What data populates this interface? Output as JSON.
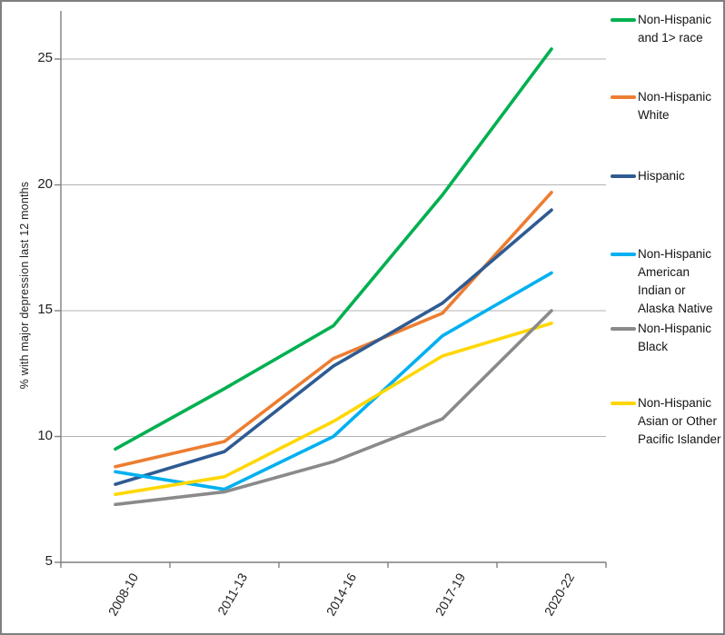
{
  "chart_data": {
    "type": "line",
    "title": "",
    "xlabel": "",
    "ylabel": "% with major depression last 12 months",
    "categories": [
      "2008-10",
      "2011-13",
      "2014-16",
      "2017-19",
      "2020-22"
    ],
    "y_ticks": [
      5,
      10,
      15,
      20,
      25
    ],
    "ylim": [
      5,
      27
    ],
    "grid": "horizontal",
    "legend_position": "right",
    "draw_order": [
      0,
      1,
      2,
      3,
      5,
      4
    ],
    "series": [
      {
        "name": "Non-Hispanic and 1> race",
        "lines": [
          "Non-Hispanic",
          "and 1> race"
        ],
        "color": "#00B050",
        "values": [
          9.5,
          11.9,
          14.4,
          19.6,
          25.4
        ]
      },
      {
        "name": "Non-Hispanic White",
        "lines": [
          "Non-Hispanic",
          "White"
        ],
        "color": "#ED7D31",
        "values": [
          8.8,
          9.8,
          13.1,
          14.9,
          19.7
        ]
      },
      {
        "name": "Hispanic",
        "lines": [
          "Hispanic"
        ],
        "color": "#2F5B93",
        "values": [
          8.1,
          9.4,
          12.8,
          15.3,
          19.0
        ]
      },
      {
        "name": "Non-Hispanic American Indian or Alaska Native",
        "lines": [
          "Non-Hispanic",
          "American",
          "Indian or",
          "Alaska Native"
        ],
        "color": "#00B0F0",
        "values": [
          8.6,
          7.9,
          10.0,
          14.0,
          16.5
        ]
      },
      {
        "name": "Non-Hispanic Black",
        "lines": [
          "Non-Hispanic",
          "Black"
        ],
        "color": "#8A8A8A",
        "values": [
          7.3,
          7.8,
          9.0,
          10.7,
          15.0
        ]
      },
      {
        "name": "Non-Hispanic Asian or Other Pacific Islander",
        "lines": [
          "Non-Hispanic",
          "Asian or Other",
          "Pacific Islander"
        ],
        "color": "#FFD700",
        "values": [
          7.7,
          8.4,
          10.6,
          13.2,
          14.5
        ]
      }
    ],
    "colors": {
      "background": "#FFFFFF",
      "frame": "#7F7F7F",
      "axis": "#7F7F7F",
      "gridline": "#B3B3B3",
      "text": "#1F1F1F"
    }
  }
}
